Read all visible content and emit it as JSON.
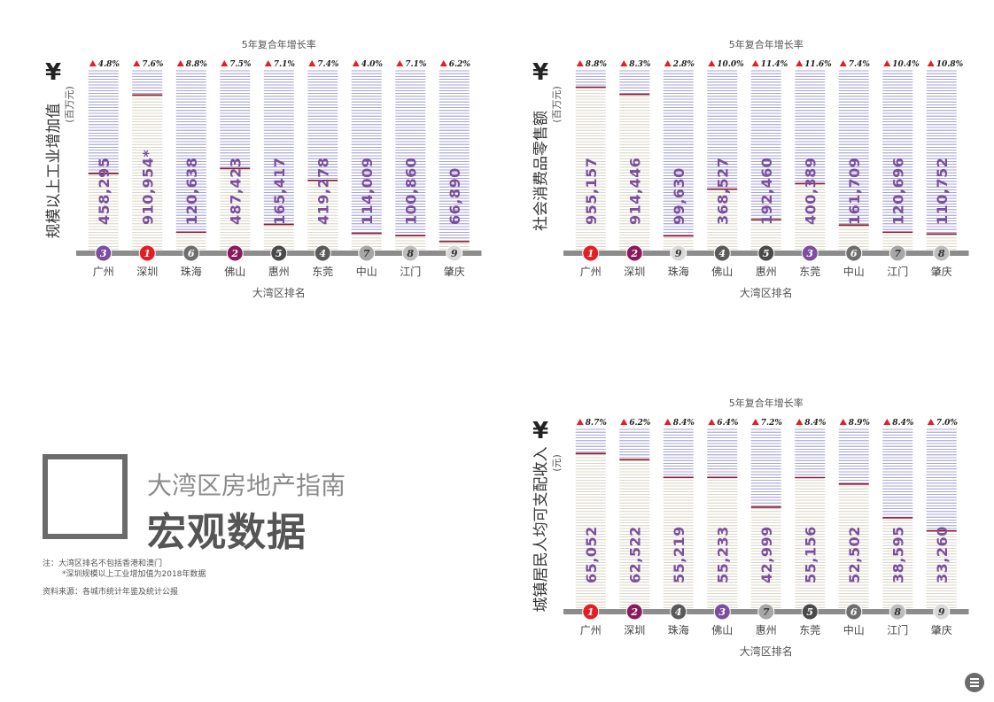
{
  "page": {
    "subtitle": "大湾区房地产指南",
    "title": "宏观数据",
    "notes": [
      "注：大湾区排名不包括香港和澳门",
      "*深圳规模以上工业增加值为2018年数据"
    ],
    "source": "资料来源：各城市统计年鉴及统计公报"
  },
  "colors": {
    "rank1": "#e31e24",
    "rank2": "#8b1a5c",
    "rank3": "#7b4f9e",
    "rank4": "#5a5a5a",
    "rank5": "#4a4a4a",
    "rank6": "#6e6e6e",
    "rank7": "#a7a7a7",
    "rank8": "#bdbdbd",
    "rank9": "#d9d9d9",
    "value_text": "#7b4f9e",
    "arrow": "#e31e24",
    "line_upper": "#8b87c9",
    "line_lower": "#cfcab8",
    "marker": "#8b1a2c",
    "baseline": "#8c8c8c"
  },
  "chart_data": [
    {
      "type": "bar",
      "ylabel": "规模以上工业增加值",
      "yunit": "(百万元)",
      "currency_symbol": "¥",
      "growth_label": "5年复合年增长率",
      "xlabel": "大湾区排名",
      "categories": [
        "广州",
        "深圳",
        "珠海",
        "佛山",
        "惠州",
        "东莞",
        "中山",
        "江门",
        "肇庆"
      ],
      "values": [
        458295,
        910954,
        120638,
        487423,
        165417,
        419278,
        114009,
        100860,
        66890
      ],
      "value_labels": [
        "458,295",
        "910,954*",
        "120,638",
        "487,423",
        "165,417",
        "419,278",
        "114,009",
        "100,860",
        "66,890"
      ],
      "growth": [
        "4.8%",
        "7.6%",
        "8.8%",
        "7.5%",
        "7.1%",
        "7.4%",
        "4.0%",
        "7.1%",
        "6.2%"
      ],
      "ranks": [
        "3",
        "1",
        "6",
        "2",
        "5",
        "4",
        "7",
        "8",
        "9"
      ],
      "ylim": [
        0,
        1050000
      ]
    },
    {
      "type": "bar",
      "ylabel": "社会消费品零售额",
      "yunit": "(百万元)",
      "currency_symbol": "¥",
      "growth_label": "5年复合年增长率",
      "xlabel": "大湾区排名",
      "categories": [
        "广州",
        "深圳",
        "珠海",
        "佛山",
        "惠州",
        "东莞",
        "中山",
        "江门",
        "肇庆"
      ],
      "values": [
        955157,
        914446,
        99630,
        368527,
        192460,
        400389,
        161709,
        120696,
        110752
      ],
      "value_labels": [
        "955,157",
        "914,446",
        "99,630",
        "368,527",
        "192,460",
        "400,389",
        "161,709",
        "120,696",
        "110,752"
      ],
      "growth": [
        "8.8%",
        "8.3%",
        "2.8%",
        "10.0%",
        "11.4%",
        "11.6%",
        "7.4%",
        "10.4%",
        "10.8%"
      ],
      "ranks": [
        "1",
        "2",
        "9",
        "4",
        "5",
        "3",
        "6",
        "7",
        "8"
      ],
      "ylim": [
        0,
        1050000
      ]
    },
    {
      "type": "bar",
      "ylabel": "城镇居民人均可支配收入",
      "yunit": "(元)",
      "currency_symbol": "¥",
      "growth_label": "5年复合年增长率",
      "xlabel": "大湾区排名",
      "categories": [
        "广州",
        "深圳",
        "珠海",
        "佛山",
        "惠州",
        "东莞",
        "中山",
        "江门",
        "肇庆"
      ],
      "values": [
        65052,
        62522,
        55219,
        55233,
        42999,
        55156,
        52502,
        38595,
        33260
      ],
      "value_labels": [
        "65,052",
        "62,522",
        "55,219",
        "55,233",
        "42,999",
        "55,156",
        "52,502",
        "38,595",
        "33,260"
      ],
      "growth": [
        "8.7%",
        "6.2%",
        "8.4%",
        "6.4%",
        "7.2%",
        "8.4%",
        "8.9%",
        "8.4%",
        "7.0%"
      ],
      "ranks": [
        "1",
        "2",
        "4",
        "3",
        "7",
        "5",
        "6",
        "8",
        "9"
      ],
      "ylim": [
        0,
        75000
      ]
    }
  ]
}
